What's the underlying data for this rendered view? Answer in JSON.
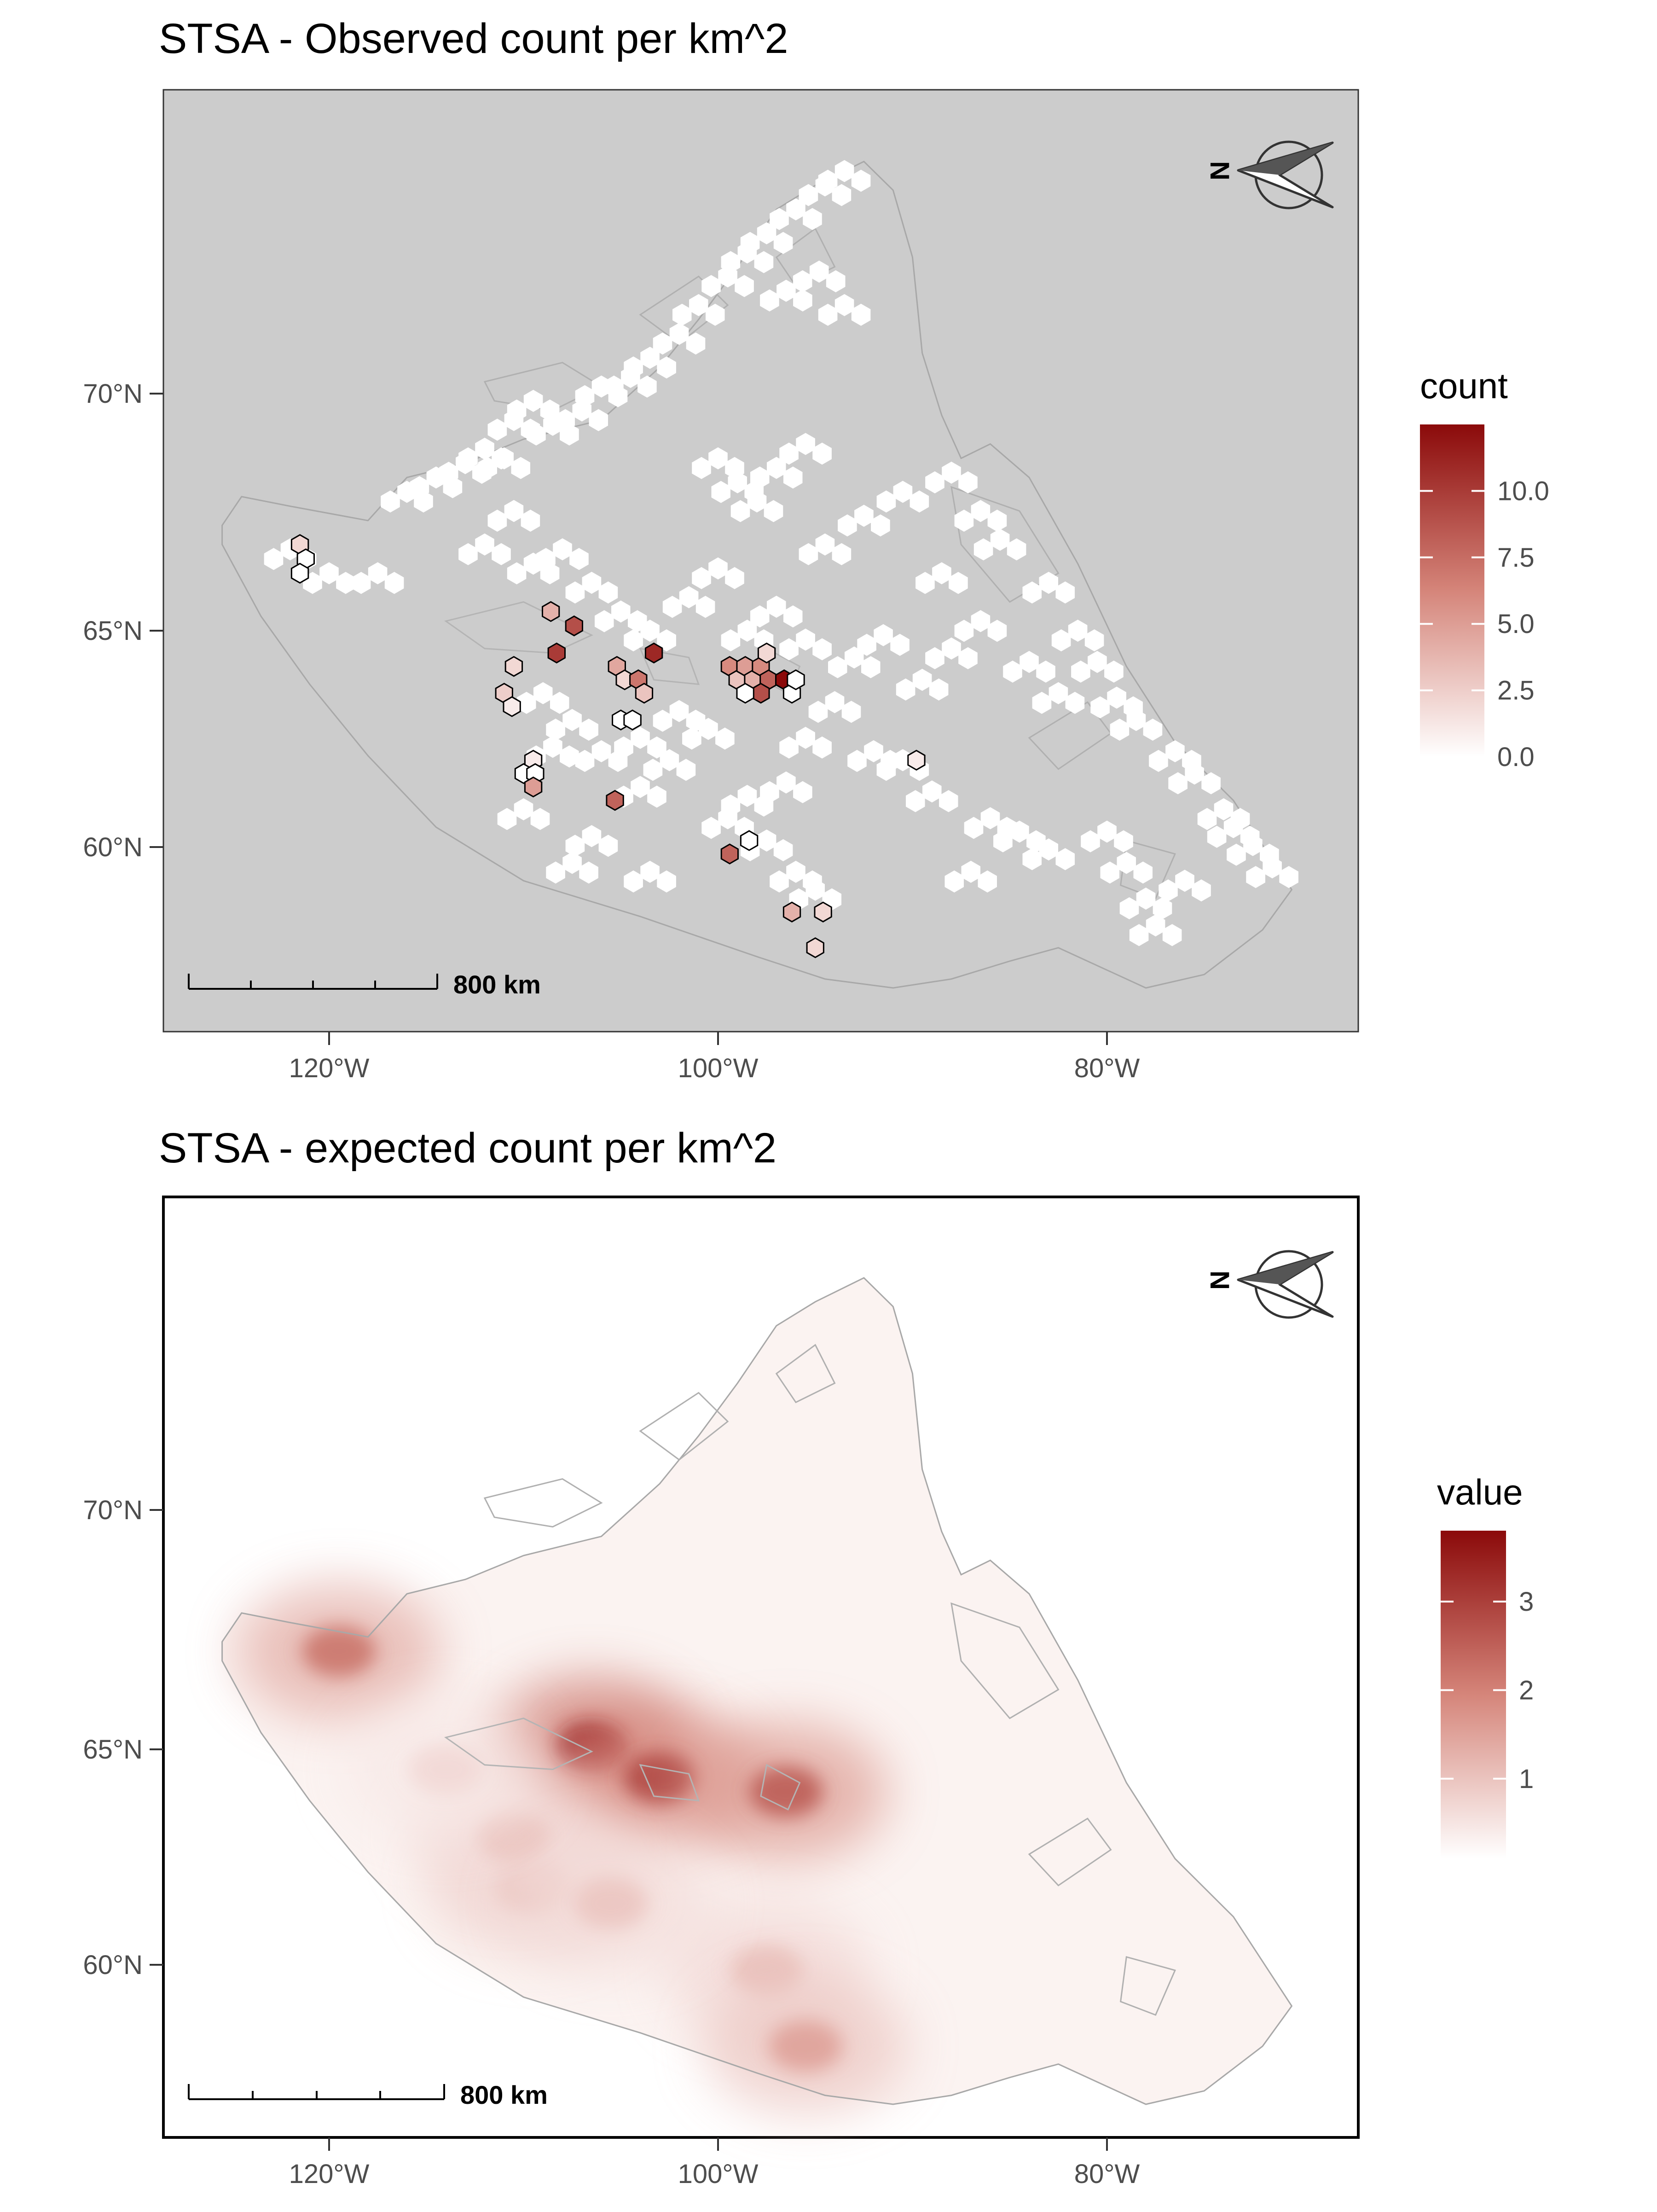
{
  "panels": [
    {
      "id": "observed",
      "title": "STSA - Observed count per km^2",
      "legend_title": "count",
      "legend_ticks": [
        "10.0",
        "7.5",
        "5.0",
        "2.5",
        "0.0"
      ],
      "legend_values": [
        10.0,
        7.5,
        5.0,
        2.5,
        0.0
      ],
      "legend_range": [
        0,
        12.5
      ],
      "scale_label": "800 km",
      "background": "#cccccc"
    },
    {
      "id": "expected",
      "title": "STSA - expected count per km^2",
      "legend_title": "value",
      "legend_ticks": [
        "3",
        "2",
        "1"
      ],
      "legend_values": [
        3,
        2,
        1
      ],
      "legend_range": [
        0.1,
        3.8
      ],
      "scale_label": "800 km",
      "background": "#ffffff"
    }
  ],
  "axes": {
    "x_ticks": [
      "120°W",
      "100°W",
      "80°W"
    ],
    "y_ticks": [
      "70°N",
      "65°N",
      "60°N"
    ]
  },
  "north_arrow": {
    "letter": "N"
  },
  "colors": {
    "low": "#ffffff",
    "high": "#8b0a0a",
    "land_outline": "#a8a8a8",
    "hex_white": "#ffffff"
  },
  "chart_data": [
    {
      "type": "heatmap",
      "title": "STSA - Observed count per km^2",
      "legend": "count",
      "color_range": [
        0,
        12.5
      ],
      "y_ticks": [
        "70°N",
        "65°N",
        "60°N"
      ],
      "x_ticks": [
        "120°W",
        "100°W",
        "80°W"
      ],
      "observed_hexes": [
        {
          "lon": -121.5,
          "lat": 66.8,
          "value": 2.0
        },
        {
          "lon": -121.2,
          "lat": 66.5,
          "value": 0.0
        },
        {
          "lon": -121.5,
          "lat": 66.2,
          "value": 0.0
        },
        {
          "lon": -108.6,
          "lat": 65.4,
          "value": 4.0
        },
        {
          "lon": -107.4,
          "lat": 65.1,
          "value": 9.0
        },
        {
          "lon": -108.3,
          "lat": 64.5,
          "value": 10.0
        },
        {
          "lon": -103.3,
          "lat": 64.5,
          "value": 11.0
        },
        {
          "lon": -105.2,
          "lat": 64.2,
          "value": 4.5
        },
        {
          "lon": -104.8,
          "lat": 63.9,
          "value": 2.0
        },
        {
          "lon": -104.1,
          "lat": 63.9,
          "value": 7.0
        },
        {
          "lon": -103.8,
          "lat": 63.6,
          "value": 3.0
        },
        {
          "lon": -105.0,
          "lat": 63.0,
          "value": 0.0
        },
        {
          "lon": -104.4,
          "lat": 63.0,
          "value": 0.0
        },
        {
          "lon": -110.5,
          "lat": 64.2,
          "value": 2.0
        },
        {
          "lon": -111.0,
          "lat": 63.6,
          "value": 2.5
        },
        {
          "lon": -110.6,
          "lat": 63.3,
          "value": 1.0
        },
        {
          "lon": -109.5,
          "lat": 62.1,
          "value": 1.0
        },
        {
          "lon": -110.0,
          "lat": 61.8,
          "value": 0.0
        },
        {
          "lon": -109.4,
          "lat": 61.8,
          "value": 0.0
        },
        {
          "lon": -109.5,
          "lat": 61.5,
          "value": 5.0
        },
        {
          "lon": -105.3,
          "lat": 61.2,
          "value": 8.0
        },
        {
          "lon": -99.4,
          "lat": 64.2,
          "value": 6.0
        },
        {
          "lon": -99.0,
          "lat": 63.9,
          "value": 3.0
        },
        {
          "lon": -98.6,
          "lat": 64.2,
          "value": 5.0
        },
        {
          "lon": -98.2,
          "lat": 63.9,
          "value": 4.0
        },
        {
          "lon": -97.8,
          "lat": 64.2,
          "value": 6.0
        },
        {
          "lon": -97.5,
          "lat": 64.5,
          "value": 2.0
        },
        {
          "lon": -97.4,
          "lat": 63.9,
          "value": 8.0
        },
        {
          "lon": -96.6,
          "lat": 63.9,
          "value": 12.5
        },
        {
          "lon": -96.2,
          "lat": 63.6,
          "value": 0.0
        },
        {
          "lon": -96.0,
          "lat": 63.9,
          "value": 0.0
        },
        {
          "lon": -97.8,
          "lat": 63.6,
          "value": 9.0
        },
        {
          "lon": -98.6,
          "lat": 63.6,
          "value": 0.0
        },
        {
          "lon": -99.4,
          "lat": 60.0,
          "value": 8.0
        },
        {
          "lon": -98.4,
          "lat": 60.3,
          "value": 0.0
        },
        {
          "lon": -96.2,
          "lat": 58.7,
          "value": 4.0
        },
        {
          "lon": -94.6,
          "lat": 58.7,
          "value": 2.0
        },
        {
          "lon": -95.0,
          "lat": 57.9,
          "value": 2.0
        },
        {
          "lon": -89.8,
          "lat": 62.1,
          "value": 1.0
        }
      ]
    },
    {
      "type": "heatmap",
      "title": "STSA - expected count per km^2",
      "legend": "value",
      "color_range": [
        0.1,
        3.8
      ],
      "y_ticks": [
        "70°N",
        "65°N",
        "60°N"
      ],
      "x_ticks": [
        "120°W",
        "100°W",
        "80°W"
      ],
      "hotspots": [
        {
          "lon": -106.5,
          "lat": 65.0,
          "value": 3.6
        },
        {
          "lon": -103.0,
          "lat": 64.3,
          "value": 2.9
        },
        {
          "lon": -96.5,
          "lat": 64.0,
          "value": 2.6
        },
        {
          "lon": -119.5,
          "lat": 67.0,
          "value": 2.2
        },
        {
          "lon": -109.5,
          "lat": 61.9,
          "value": 1.2
        },
        {
          "lon": -110.5,
          "lat": 63.0,
          "value": 1.0
        },
        {
          "lon": -97.5,
          "lat": 60.0,
          "value": 1.0
        },
        {
          "lon": -95.5,
          "lat": 58.3,
          "value": 1.5
        },
        {
          "lon": -105.5,
          "lat": 61.5,
          "value": 0.9
        },
        {
          "lon": -114.0,
          "lat": 64.5,
          "value": 0.6
        }
      ]
    }
  ]
}
